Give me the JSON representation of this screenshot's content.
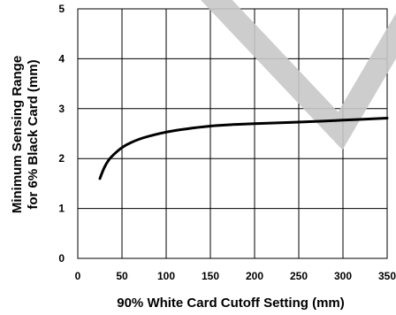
{
  "chart_data": {
    "type": "line",
    "title": "",
    "xlabel": "90% White Card Cutoff Setting (mm)",
    "ylabel_lines": [
      "Minimum Sensing Range",
      "for 6% Black Card (mm)"
    ],
    "xlim": [
      0,
      350
    ],
    "ylim": [
      0,
      5
    ],
    "xticks": [
      "0",
      "50",
      "100",
      "150",
      "200",
      "250",
      "300",
      "350"
    ],
    "yticks": [
      "0",
      "1",
      "2",
      "3",
      "4",
      "5"
    ],
    "grid": true,
    "series": [
      {
        "color": "#000000",
        "x": [
          25,
          30,
          35,
          40,
          50,
          60,
          75,
          100,
          125,
          150,
          175,
          200,
          250,
          300,
          350
        ],
        "y": [
          1.6,
          1.82,
          1.97,
          2.07,
          2.22,
          2.32,
          2.42,
          2.53,
          2.6,
          2.65,
          2.68,
          2.7,
          2.73,
          2.77,
          2.81
        ]
      }
    ],
    "watermark_color": "#c8c8c8"
  }
}
